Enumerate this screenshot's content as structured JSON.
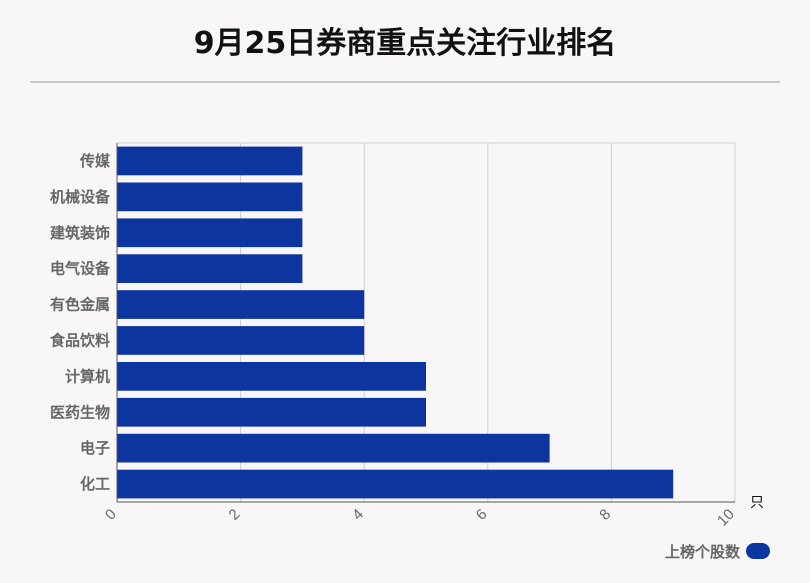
{
  "chart_data": {
    "type": "bar",
    "orientation": "horizontal",
    "title": "9月25日券商重点关注行业排名",
    "categories": [
      "传媒",
      "机械设备",
      "建筑装饰",
      "电气设备",
      "有色金属",
      "食品饮料",
      "计算机",
      "医药生物",
      "电子",
      "化工"
    ],
    "series": [
      {
        "name": "上榜个股数",
        "values": [
          3,
          3,
          3,
          3,
          4,
          4,
          5,
          5,
          7,
          9
        ],
        "color": "#0d35a0"
      }
    ],
    "xlabel": "只",
    "xlim": [
      0,
      10
    ],
    "xticks": [
      0,
      2,
      4,
      6,
      8,
      10
    ],
    "grid": true,
    "legend_position": "bottom-right"
  }
}
